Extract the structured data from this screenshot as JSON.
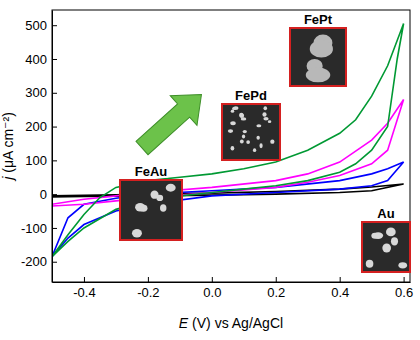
{
  "chart_data": {
    "type": "line",
    "xlabel": "E (V) vs Ag/AgCl",
    "ylabel": "j (μA cm⁻²)",
    "xlim": [
      -0.5,
      0.62
    ],
    "ylim": [
      -260,
      545
    ],
    "xticks": [
      -0.4,
      -0.2,
      {
        "value": 0,
        "label": "0.0"
      },
      0.2,
      0.4,
      0.6
    ],
    "yticks": [
      -200,
      -100,
      0,
      100,
      200,
      300,
      400,
      500
    ],
    "grid": false,
    "series": [
      {
        "name": "Au",
        "color": "#000000",
        "x": [
          -0.5,
          -0.3,
          -0.2,
          0.0,
          0.2,
          0.4,
          0.5,
          0.6,
          0.5,
          0.4,
          0.2,
          0.0,
          -0.2,
          -0.4,
          -0.5
        ],
        "values": [
          -5,
          -2,
          0,
          3,
          8,
          15,
          21,
          30,
          10,
          5,
          0,
          -3,
          -5,
          -7,
          -8
        ]
      },
      {
        "name": "FeAu",
        "color": "#0000ff",
        "x": [
          -0.5,
          -0.45,
          -0.4,
          -0.3,
          -0.2,
          0.0,
          0.2,
          0.4,
          0.5,
          0.55,
          0.6,
          0.55,
          0.5,
          0.4,
          0.2,
          0.0,
          -0.2,
          -0.3,
          -0.4,
          -0.45,
          -0.5
        ],
        "values": [
          -185,
          -70,
          -30,
          -12,
          0,
          10,
          20,
          40,
          60,
          75,
          95,
          40,
          25,
          15,
          5,
          -5,
          -30,
          -50,
          -90,
          -130,
          -185
        ]
      },
      {
        "name": "FePd",
        "color": "#ff00ff",
        "x": [
          -0.5,
          -0.4,
          -0.3,
          -0.2,
          0.0,
          0.2,
          0.3,
          0.4,
          0.5,
          0.55,
          0.6,
          0.55,
          0.5,
          0.4,
          0.3,
          0.2,
          0.0,
          -0.2,
          -0.3,
          -0.4,
          -0.5
        ],
        "values": [
          -30,
          -15,
          -5,
          5,
          20,
          40,
          60,
          95,
          160,
          210,
          280,
          130,
          90,
          55,
          35,
          20,
          5,
          -10,
          -20,
          -30,
          -35
        ]
      },
      {
        "name": "FePt",
        "color": "#009933",
        "x": [
          -0.5,
          -0.45,
          -0.4,
          -0.35,
          -0.3,
          -0.2,
          -0.1,
          0.0,
          0.1,
          0.2,
          0.3,
          0.4,
          0.45,
          0.5,
          0.55,
          0.6,
          0.58,
          0.55,
          0.5,
          0.45,
          0.4,
          0.3,
          0.2,
          0.1,
          0.0,
          -0.1,
          -0.2,
          -0.3,
          -0.4,
          -0.45,
          -0.5
        ],
        "values": [
          -185,
          -120,
          -60,
          -10,
          20,
          40,
          50,
          60,
          75,
          95,
          130,
          180,
          220,
          290,
          380,
          505,
          400,
          200,
          130,
          90,
          65,
          40,
          25,
          15,
          5,
          -5,
          -20,
          -45,
          -100,
          -140,
          -185
        ]
      }
    ]
  }
}
